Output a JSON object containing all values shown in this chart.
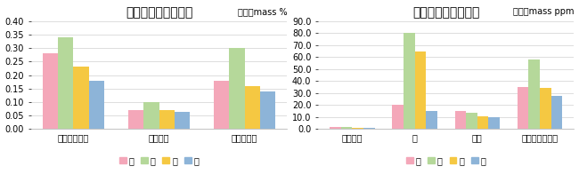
{
  "left_title": "主要ミネラルの差異",
  "left_unit": "単位：mass %",
  "left_categories": [
    "マグネシウム",
    "カリウム",
    "カルシウム"
  ],
  "left_ylim": [
    0,
    0.4
  ],
  "left_yticks": [
    0.0,
    0.05,
    0.1,
    0.15,
    0.2,
    0.25,
    0.3,
    0.35,
    0.4
  ],
  "left_series": {
    "花": [
      0.28,
      0.07,
      0.18
    ],
    "風": [
      0.34,
      0.1,
      0.3
    ],
    "月": [
      0.23,
      0.07,
      0.16
    ],
    "雪": [
      0.18,
      0.065,
      0.14
    ]
  },
  "right_title": "微量ミネラルの差異",
  "right_unit": "単位：mass ppm",
  "right_categories": [
    "マンガン",
    "鉄",
    "亜鉛",
    "ストロンチウム"
  ],
  "right_ylim": [
    0,
    90.0
  ],
  "right_yticks": [
    0.0,
    10.0,
    20.0,
    30.0,
    40.0,
    50.0,
    60.0,
    70.0,
    80.0,
    90.0
  ],
  "right_series": {
    "花": [
      1.5,
      20,
      15,
      35
    ],
    "風": [
      1.5,
      80,
      14,
      58
    ],
    "月": [
      1.0,
      65,
      11,
      34
    ],
    "雪": [
      1.0,
      15,
      10,
      28
    ]
  },
  "colors": {
    "花": "#F4A7B9",
    "風": "#B5D89A",
    "月": "#F5C842",
    "雪": "#8DB4D8"
  },
  "legend_order": [
    "花",
    "風",
    "月",
    "雪"
  ],
  "bar_width": 0.18,
  "background_color": "#FFFFFF",
  "grid_color": "#D0D0D0",
  "title_fontsize": 10,
  "label_fontsize": 7,
  "tick_fontsize": 7,
  "unit_fontsize": 7,
  "legend_fontsize": 7
}
